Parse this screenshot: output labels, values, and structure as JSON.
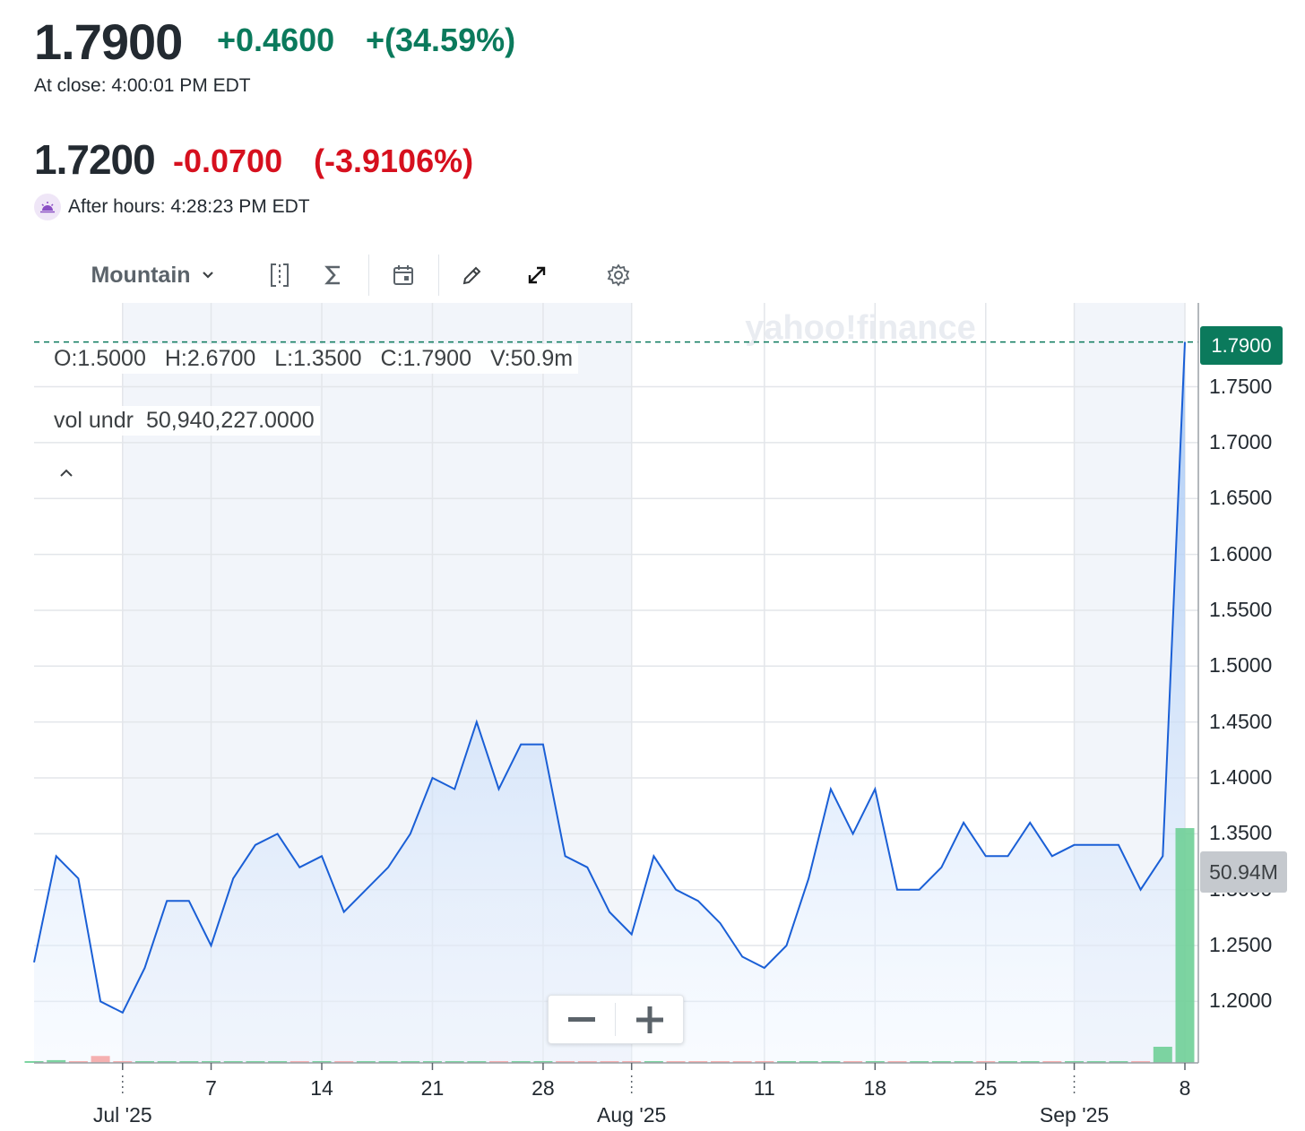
{
  "quote": {
    "close": {
      "price": "1.7900",
      "change": "+0.4600",
      "change_pct": "+(34.59%)",
      "time": "At close: 4:00:01 PM EDT"
    },
    "after_hours": {
      "price": "1.7200",
      "change": "-0.0700",
      "change_pct": "(-3.9106%)",
      "time": "After hours: 4:28:23 PM EDT"
    }
  },
  "toolbar": {
    "chart_type": "Mountain",
    "icons": [
      "compare-icon",
      "indicators-icon",
      "events-icon",
      "draw-icon",
      "fullscreen-icon",
      "settings-icon"
    ]
  },
  "legend": {
    "ohlc": [
      "O:1.5000",
      "H:2.6700",
      "L:1.3500",
      "C:1.7900",
      "V:50.9m"
    ],
    "volume_label": "vol undr",
    "volume_value": "50,940,227.0000"
  },
  "watermark": "yahoo!finance",
  "badges": {
    "last_price": "1.7900",
    "last_volume": "50.94M"
  },
  "colors": {
    "line": "#1a5fd6",
    "up": "#0b7a5c",
    "down": "#d6101e",
    "volume_up": "#6fcf97",
    "volume_down": "#f4a7a7"
  },
  "chart_data": {
    "type": "area",
    "y_ticks": [
      "1.2000",
      "1.2500",
      "1.3000",
      "1.3500",
      "1.4000",
      "1.4500",
      "1.5000",
      "1.5500",
      "1.6000",
      "1.6500",
      "1.7000",
      "1.7500"
    ],
    "ylim": [
      1.145,
      1.825
    ],
    "x_ticks": [
      {
        "i": 4,
        "label": "",
        "month": "Jul '25"
      },
      {
        "i": 8,
        "label": "7",
        "month": ""
      },
      {
        "i": 13,
        "label": "14",
        "month": ""
      },
      {
        "i": 18,
        "label": "21",
        "month": ""
      },
      {
        "i": 23,
        "label": "28",
        "month": ""
      },
      {
        "i": 27,
        "label": "",
        "month": "Aug '25"
      },
      {
        "i": 33,
        "label": "11",
        "month": ""
      },
      {
        "i": 38,
        "label": "18",
        "month": ""
      },
      {
        "i": 43,
        "label": "25",
        "month": ""
      },
      {
        "i": 47,
        "label": "",
        "month": "Sep '25"
      },
      {
        "i": 52,
        "label": "8",
        "month": ""
      }
    ],
    "values": [
      1.235,
      1.33,
      1.31,
      1.2,
      1.19,
      1.23,
      1.29,
      1.29,
      1.25,
      1.31,
      1.34,
      1.35,
      1.32,
      1.33,
      1.28,
      1.3,
      1.32,
      1.35,
      1.4,
      1.39,
      1.45,
      1.39,
      1.43,
      1.43,
      1.33,
      1.32,
      1.28,
      1.26,
      1.33,
      1.3,
      1.29,
      1.27,
      1.24,
      1.23,
      1.25,
      1.31,
      1.39,
      1.35,
      1.39,
      1.3,
      1.3,
      1.32,
      1.36,
      1.33,
      1.33,
      1.36,
      1.33,
      1.34,
      1.34,
      1.34,
      1.3,
      1.33,
      1.79
    ],
    "volume": [
      0.3,
      0.6,
      0.2,
      1.5,
      0.2,
      0.2,
      0.2,
      0.1,
      0.1,
      0.2,
      0.2,
      0.1,
      0.1,
      0.1,
      0.3,
      0.1,
      0.2,
      0.2,
      0.2,
      0.2,
      0.3,
      0.2,
      0.2,
      0.2,
      0.2,
      0.2,
      0.2,
      0.1,
      0.1,
      0.1,
      0.1,
      0.1,
      0.1,
      0.1,
      0.1,
      0.1,
      0.2,
      0.1,
      0.2,
      0.2,
      0.1,
      0.1,
      0.1,
      0.2,
      0.1,
      0.1,
      0.1,
      0.1,
      0.1,
      0.1,
      0.1,
      3.5,
      50.94
    ],
    "volume_up": [
      true,
      true,
      false,
      false,
      false,
      true,
      true,
      true,
      true,
      true,
      true,
      true,
      false,
      true,
      false,
      true,
      true,
      true,
      true,
      true,
      true,
      false,
      true,
      true,
      false,
      false,
      false,
      false,
      true,
      false,
      false,
      false,
      false,
      false,
      true,
      true,
      true,
      false,
      true,
      false,
      true,
      true,
      true,
      false,
      true,
      true,
      false,
      true,
      true,
      true,
      false,
      true,
      true
    ],
    "volume_max": 70
  }
}
